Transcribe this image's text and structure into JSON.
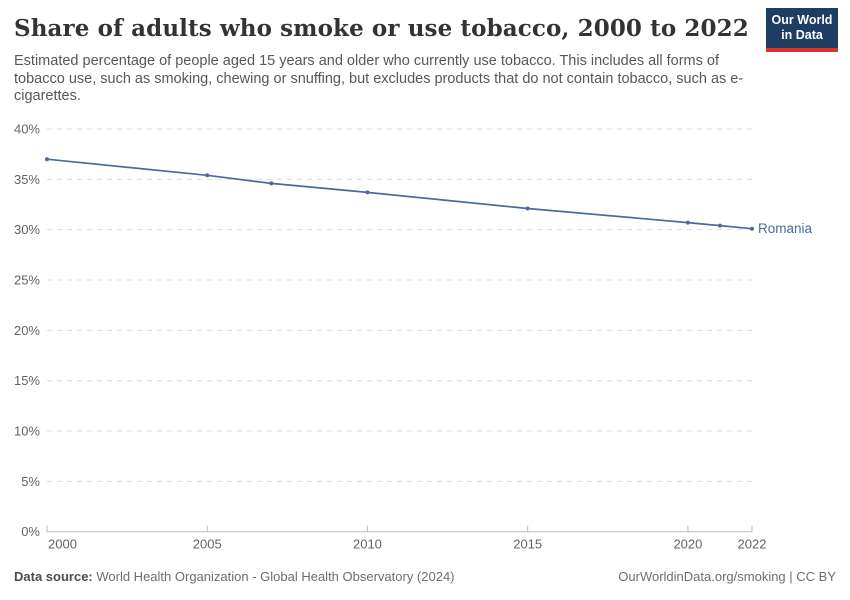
{
  "header": {
    "title": "Share of adults who smoke or use tobacco, 2000 to 2022",
    "subtitle": "Estimated percentage of people aged 15 years and older who currently use tobacco. This includes all forms of tobacco use, such as smoking, chewing or snuffing, but excludes products that do not contain tobacco, such as e-cigarettes.",
    "logo": {
      "line1": "Our World",
      "line2": "in Data",
      "bg_color": "#1d3d63",
      "stripe_color": "#d7342a"
    }
  },
  "chart_data": {
    "type": "line",
    "title": "Share of adults who smoke or use tobacco, 2000 to 2022",
    "xlabel": "",
    "ylabel": "",
    "xlim": [
      2000,
      2022
    ],
    "ylim": [
      0,
      40
    ],
    "grid": "horizontal-dashed",
    "legend_position": "end-of-line-label",
    "x_ticks": [
      {
        "value": 2000,
        "label": "2000"
      },
      {
        "value": 2005,
        "label": "2005"
      },
      {
        "value": 2010,
        "label": "2010"
      },
      {
        "value": 2015,
        "label": "2015"
      },
      {
        "value": 2020,
        "label": "2020"
      },
      {
        "value": 2022,
        "label": "2022"
      }
    ],
    "y_ticks": [
      {
        "value": 0,
        "label": "0%"
      },
      {
        "value": 5,
        "label": "5%"
      },
      {
        "value": 10,
        "label": "10%"
      },
      {
        "value": 15,
        "label": "15%"
      },
      {
        "value": 20,
        "label": "20%"
      },
      {
        "value": 25,
        "label": "25%"
      },
      {
        "value": 30,
        "label": "30%"
      },
      {
        "value": 35,
        "label": "35%"
      },
      {
        "value": 40,
        "label": "40%"
      }
    ],
    "series": [
      {
        "name": "Romania",
        "color": "#4C6A9C",
        "x": [
          2000,
          2005,
          2007,
          2010,
          2015,
          2020,
          2021,
          2022
        ],
        "values": [
          37.0,
          35.4,
          34.6,
          33.7,
          32.1,
          30.7,
          30.4,
          30.1
        ]
      }
    ],
    "colors": {
      "gridline": "#dcdcdc",
      "axis": "#bdbdbd",
      "tick_label": "#636363"
    }
  },
  "footer": {
    "datasource_label": "Data source:",
    "datasource_text": " World Health Organization - Global Health Observatory (2024)",
    "link_text": "OurWorldinData.org/smoking | CC BY"
  }
}
